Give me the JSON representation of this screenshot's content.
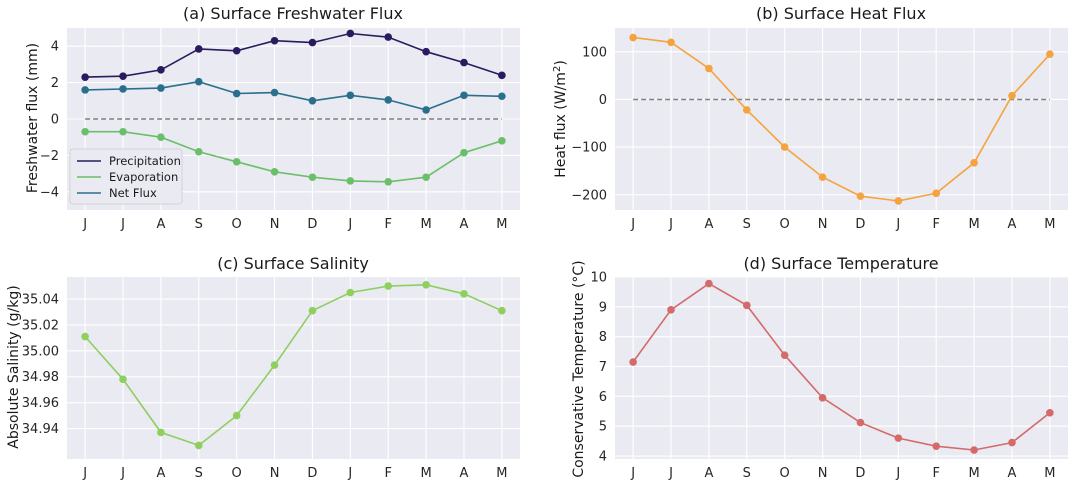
{
  "colors": {
    "panel_bg": "#EAEAF2",
    "grid": "#FFFFFF",
    "zero_line": "#808080",
    "precipitation": "#2A1A5E",
    "evaporation": "#6BBF6A",
    "net_flux": "#2A6F8C",
    "heat": "#F5A33E",
    "salinity": "#8ECF5E",
    "temperature": "#D46A6A"
  },
  "chart_data": [
    {
      "id": "freshwater",
      "type": "line",
      "title": "(a) Surface Freshwater Flux",
      "xlabel": "",
      "ylabel": "Freshwater flux (mm)",
      "categories": [
        "J",
        "J",
        "A",
        "S",
        "O",
        "N",
        "D",
        "J",
        "F",
        "M",
        "A",
        "M"
      ],
      "ylim": [
        -5,
        5
      ],
      "yticks": [
        -4,
        -2,
        0,
        2,
        4
      ],
      "ytick_labels": [
        "−4",
        "−2",
        "0",
        "2",
        "4"
      ],
      "grid": true,
      "zero_line": true,
      "legend_position": "lower-left",
      "series": [
        {
          "name": "Precipitation",
          "color": "#2A1A5E",
          "values": [
            2.3,
            2.35,
            2.7,
            3.85,
            3.75,
            4.3,
            4.2,
            4.7,
            4.5,
            3.7,
            3.1,
            2.4
          ]
        },
        {
          "name": "Evaporation",
          "color": "#6BBF6A",
          "values": [
            -0.7,
            -0.7,
            -1.0,
            -1.8,
            -2.35,
            -2.9,
            -3.2,
            -3.4,
            -3.45,
            -3.2,
            -1.85,
            -1.2
          ]
        },
        {
          "name": "Net Flux",
          "color": "#2A6F8C",
          "values": [
            1.6,
            1.65,
            1.7,
            2.05,
            1.4,
            1.45,
            1.0,
            1.3,
            1.05,
            0.5,
            1.3,
            1.25
          ]
        }
      ]
    },
    {
      "id": "heat",
      "type": "line",
      "title": "(b) Surface Heat Flux",
      "xlabel": "",
      "ylabel": "Heat flux (W/m",
      "ylabel_sup": "2",
      "ylabel_end": ")",
      "categories": [
        "J",
        "J",
        "A",
        "S",
        "O",
        "N",
        "D",
        "J",
        "F",
        "M",
        "A",
        "M"
      ],
      "ylim": [
        -232,
        150
      ],
      "yticks": [
        -200,
        -100,
        0,
        100
      ],
      "ytick_labels": [
        "−200",
        "−100",
        "0",
        "100"
      ],
      "grid": true,
      "zero_line": true,
      "series": [
        {
          "color": "#F5A33E",
          "values": [
            130,
            120,
            65,
            -22,
            -100,
            -163,
            -203,
            -213,
            -197,
            -133,
            8,
            95
          ]
        }
      ]
    },
    {
      "id": "salinity",
      "type": "line",
      "title": "(c) Surface Salinity",
      "xlabel": "",
      "ylabel": "Absolute Salinity (g/kg)",
      "categories": [
        "J",
        "J",
        "A",
        "S",
        "O",
        "N",
        "D",
        "J",
        "F",
        "M",
        "A",
        "M"
      ],
      "ylim": [
        34.9165,
        35.057
      ],
      "yticks": [
        34.94,
        34.96,
        34.98,
        35.0,
        35.02,
        35.04
      ],
      "ytick_labels": [
        "34.94",
        "34.96",
        "34.98",
        "35.00",
        "35.02",
        "35.04"
      ],
      "grid": true,
      "zero_line": false,
      "series": [
        {
          "color": "#8ECF5E",
          "values": [
            35.011,
            34.978,
            34.937,
            34.927,
            34.95,
            34.989,
            35.031,
            35.045,
            35.05,
            35.051,
            35.044,
            35.031
          ]
        }
      ]
    },
    {
      "id": "temperature",
      "type": "line",
      "title": "(d) Surface Temperature",
      "xlabel": "",
      "ylabel": "Conservative Temperature (°C)",
      "categories": [
        "J",
        "J",
        "A",
        "S",
        "O",
        "N",
        "D",
        "J",
        "F",
        "M",
        "A",
        "M"
      ],
      "ylim": [
        3.9,
        10.0
      ],
      "yticks": [
        4,
        5,
        6,
        7,
        8,
        9,
        10
      ],
      "ytick_labels": [
        "4",
        "5",
        "6",
        "7",
        "8",
        "9",
        "10"
      ],
      "grid": true,
      "zero_line": false,
      "series": [
        {
          "color": "#D46A6A",
          "values": [
            7.15,
            8.9,
            9.78,
            9.05,
            7.38,
            5.95,
            5.12,
            4.6,
            4.33,
            4.2,
            4.45,
            5.45
          ]
        }
      ]
    }
  ]
}
